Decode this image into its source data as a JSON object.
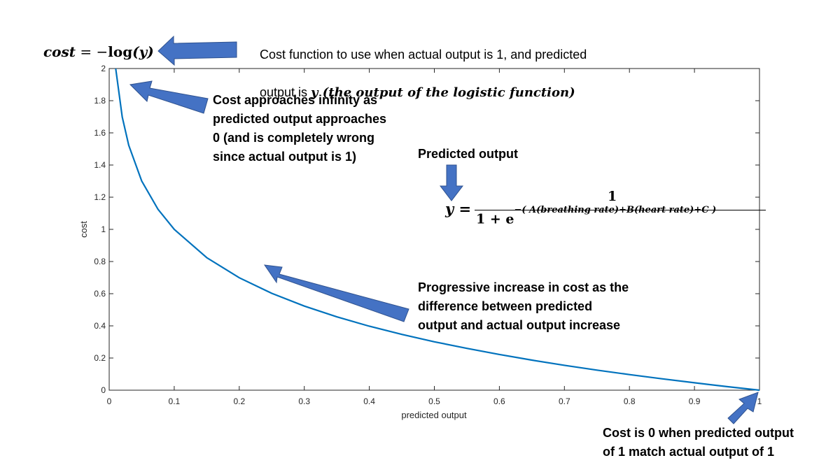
{
  "chart_data": {
    "type": "line",
    "title": "",
    "xlabel": "predicted output",
    "ylabel": "cost",
    "xlim": [
      0,
      1
    ],
    "ylim": [
      0,
      2
    ],
    "x_ticks": [
      "0",
      "0.1",
      "0.2",
      "0.3",
      "0.4",
      "0.5",
      "0.6",
      "0.7",
      "0.8",
      "0.9",
      "1"
    ],
    "y_ticks": [
      "0",
      "0.2",
      "0.4",
      "0.6",
      "0.8",
      "1",
      "1.2",
      "1.4",
      "1.6",
      "1.8",
      "2"
    ],
    "grid": false,
    "series": [
      {
        "color": "#0072BD",
        "x": [
          0.01,
          0.02,
          0.03,
          0.05,
          0.075,
          0.1,
          0.15,
          0.2,
          0.25,
          0.3,
          0.35,
          0.4,
          0.45,
          0.5,
          0.55,
          0.6,
          0.65,
          0.7,
          0.75,
          0.8,
          0.85,
          0.9,
          0.95,
          1.0
        ],
        "y": [
          2.0,
          1.699,
          1.523,
          1.301,
          1.125,
          1.0,
          0.824,
          0.699,
          0.602,
          0.523,
          0.456,
          0.398,
          0.347,
          0.301,
          0.26,
          0.222,
          0.187,
          0.155,
          0.125,
          0.097,
          0.071,
          0.046,
          0.022,
          0.0
        ]
      }
    ]
  },
  "annotations": {
    "cost_formula": {
      "lhs": "cost",
      "eq": " = −",
      "fn": "log",
      "arg": "(y)"
    },
    "cost_function_note": {
      "line1": "Cost function to use when actual output is 1, and predicted",
      "line2_prefix": "output is ",
      "line2_math": "y (the output of the logistic function)"
    },
    "infinity_note": "Cost approaches infinity as\npredicted output approaches\n0 (and is completely wrong\nsince actual output is 1)",
    "predicted_output_label": "Predicted output",
    "logistic_formula": {
      "lhs": "y =",
      "numerator": "1",
      "den_base": "1 + e",
      "den_exponent": "−( A(breathing rate)+B(heart rate)+C )"
    },
    "progressive_note": "Progressive increase in cost as the\ndifference between predicted\noutput and actual output increase",
    "zero_note": "Cost is 0 when predicted output\nof 1 match actual output of 1"
  },
  "colors": {
    "line": "#0072BD",
    "arrow_fill": "#4472C4",
    "arrow_stroke": "#2F528F",
    "axis": "#262626"
  }
}
